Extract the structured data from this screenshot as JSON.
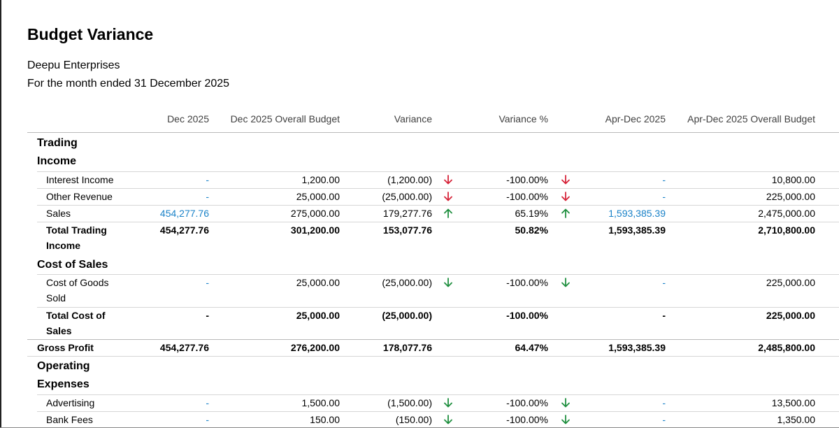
{
  "report": {
    "title": "Budget Variance",
    "organization": "Deepu Enterprises",
    "period": "For the month ended 31 December 2025",
    "columns": [
      "Dec 2025",
      "Dec 2025 Overall Budget",
      "Variance",
      "Variance %",
      "Apr-Dec 2025",
      "Apr-Dec 2025 Overall Budget"
    ],
    "sections": {
      "trading": "Trading",
      "income": "Income",
      "cost_of_sales": "Cost of Sales",
      "operating_line1": "Operating",
      "operating_line2": "Expenses"
    },
    "rows": {
      "interest_income": {
        "label": "Interest Income",
        "dec": "-",
        "budget": "1,200.00",
        "variance": "(1,200.00)",
        "variance_pct": "-100.00%",
        "ytd": "-",
        "ytd_budget": "10,800.00"
      },
      "other_revenue": {
        "label": "Other Revenue",
        "dec": "-",
        "budget": "25,000.00",
        "variance": "(25,000.00)",
        "variance_pct": "-100.00%",
        "ytd": "-",
        "ytd_budget": "225,000.00"
      },
      "sales": {
        "label": "Sales",
        "dec": "454,277.76",
        "budget": "275,000.00",
        "variance": "179,277.76",
        "variance_pct": "65.19%",
        "ytd": "1,593,385.39",
        "ytd_budget": "2,475,000.00"
      },
      "total_trading_income": {
        "label_line1": "Total Trading",
        "label_line2": "Income",
        "dec": "454,277.76",
        "budget": "301,200.00",
        "variance": "153,077.76",
        "variance_pct": "50.82%",
        "ytd": "1,593,385.39",
        "ytd_budget": "2,710,800.00"
      },
      "cogs": {
        "label_line1": "Cost of Goods",
        "label_line2": "Sold",
        "dec": "-",
        "budget": "25,000.00",
        "variance": "(25,000.00)",
        "variance_pct": "-100.00%",
        "ytd": "-",
        "ytd_budget": "225,000.00"
      },
      "total_cost_of_sales": {
        "label_line1": "Total Cost of",
        "label_line2": "Sales",
        "dec": "-",
        "budget": "25,000.00",
        "variance": "(25,000.00)",
        "variance_pct": "-100.00%",
        "ytd": "-",
        "ytd_budget": "225,000.00"
      },
      "gross_profit": {
        "label": "Gross Profit",
        "dec": "454,277.76",
        "budget": "276,200.00",
        "variance": "178,077.76",
        "variance_pct": "64.47%",
        "ytd": "1,593,385.39",
        "ytd_budget": "2,485,800.00"
      },
      "advertising": {
        "label": "Advertising",
        "dec": "-",
        "budget": "1,500.00",
        "variance": "(1,500.00)",
        "variance_pct": "-100.00%",
        "ytd": "-",
        "ytd_budget": "13,500.00"
      },
      "bank_fees": {
        "label": "Bank Fees",
        "dec": "-",
        "budget": "150.00",
        "variance": "(150.00)",
        "variance_pct": "-100.00%",
        "ytd": "-",
        "ytd_budget": "1,350.00"
      }
    }
  },
  "colors": {
    "link": "#1a82c8",
    "arrow_red": "#d6243a",
    "arrow_green": "#1f8f3f"
  },
  "icons": {
    "down_unfavorable": "arrow-down-red-icon",
    "up_favorable": "arrow-up-green-icon",
    "down_favorable": "arrow-down-green-icon"
  }
}
